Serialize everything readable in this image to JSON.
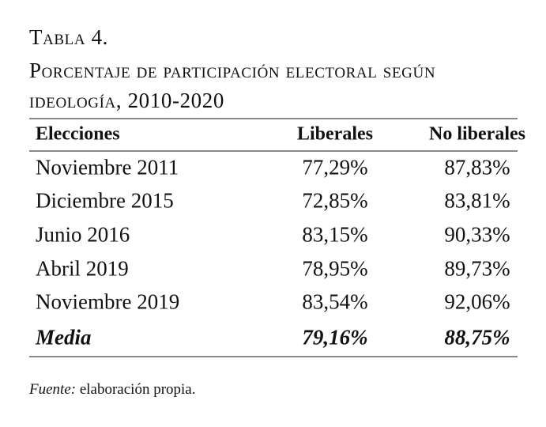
{
  "table": {
    "label": "Tabla 4.",
    "title_line1": "Porcentaje de participación electoral según",
    "title_line2": "ideología, 2010-2020",
    "headers": [
      "Elecciones",
      "Liberales",
      "No liberales"
    ],
    "rows": [
      [
        "Noviembre 2011",
        "77,29%",
        "87,83%"
      ],
      [
        "Diciembre 2015",
        "72,85%",
        "83,81%"
      ],
      [
        "Junio 2016",
        "83,15%",
        "90,33%"
      ],
      [
        "Abril 2019",
        "78,95%",
        "89,73%"
      ],
      [
        "Noviembre 2019",
        "83,54%",
        "92,06%"
      ]
    ],
    "mean": [
      "Media",
      "79,16%",
      "88,75%"
    ]
  },
  "footer": {
    "source_label": "Fuente:",
    "source_text": " elaboración propia."
  }
}
